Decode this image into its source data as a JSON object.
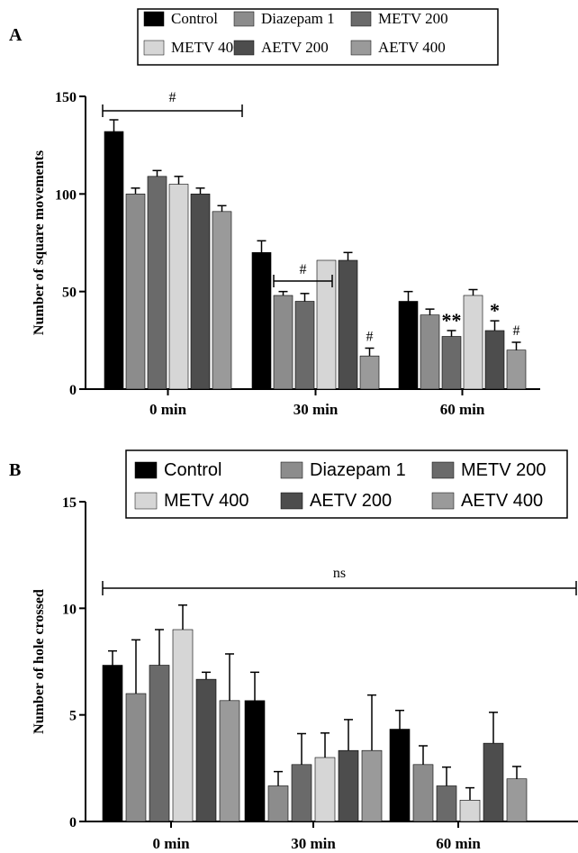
{
  "colors": {
    "Control": "#000000",
    "Diazepam 1": "#8c8c8c",
    "METV 200": "#6a6a6a",
    "METV 400": "#d6d6d6",
    "AETV 200": "#4d4d4d",
    "AETV 400": "#9a9a9a"
  },
  "chart_data": [
    {
      "panel": "A",
      "type": "bar",
      "ylabel": "Number of square movements",
      "ylim": [
        0,
        150
      ],
      "yticks": [
        "0",
        "50",
        "100",
        "150"
      ],
      "categories": [
        "0 min",
        "30 min",
        "60 min"
      ],
      "legend": [
        "Control",
        "Diazepam 1",
        "METV 200",
        "METV 400",
        "AETV 200",
        "AETV 400"
      ],
      "series": [
        {
          "name": "Control",
          "values": [
            132,
            70,
            45
          ],
          "errors": [
            6,
            6,
            5
          ]
        },
        {
          "name": "Diazepam 1",
          "values": [
            100,
            48,
            38
          ],
          "errors": [
            3,
            2,
            3
          ]
        },
        {
          "name": "METV 200",
          "values": [
            109,
            45,
            27
          ],
          "errors": [
            3,
            4,
            3
          ]
        },
        {
          "name": "METV 400",
          "values": [
            105,
            66,
            48
          ],
          "errors": [
            4,
            0,
            3
          ]
        },
        {
          "name": "AETV 200",
          "values": [
            100,
            66,
            30
          ],
          "errors": [
            3,
            4,
            5
          ]
        },
        {
          "name": "AETV 400",
          "values": [
            91,
            17,
            20
          ],
          "errors": [
            3,
            4,
            4
          ]
        }
      ],
      "annotations": {
        "hash": "#",
        "double_star": "**",
        "single_star": "*"
      }
    },
    {
      "panel": "B",
      "type": "bar",
      "ylabel": "Number of hole crossed",
      "ylim": [
        0,
        15
      ],
      "yticks": [
        "0",
        "5",
        "10",
        "15"
      ],
      "categories": [
        "0 min",
        "30 min",
        "60 min"
      ],
      "legend": [
        "Control",
        "Diazepam 1",
        "METV 200",
        "METV 400",
        "AETV 200",
        "AETV 400"
      ],
      "series": [
        {
          "name": "Control",
          "values": [
            7.33,
            5.67,
            4.33
          ],
          "errors": [
            0.67,
            1.33,
            0.88
          ]
        },
        {
          "name": "Diazepam 1",
          "values": [
            6.0,
            1.67,
            2.67
          ],
          "errors": [
            2.52,
            0.67,
            0.88
          ]
        },
        {
          "name": "METV 200",
          "values": [
            7.33,
            2.67,
            1.67
          ],
          "errors": [
            1.67,
            1.45,
            0.88
          ]
        },
        {
          "name": "METV 400",
          "values": [
            9.0,
            3.0,
            1.0
          ],
          "errors": [
            1.15,
            1.15,
            0.58
          ]
        },
        {
          "name": "AETV 200",
          "values": [
            6.67,
            3.33,
            3.67
          ],
          "errors": [
            0.33,
            1.45,
            1.45
          ]
        },
        {
          "name": "AETV 400",
          "values": [
            5.67,
            3.33,
            2.0
          ],
          "errors": [
            2.19,
            2.6,
            0.58
          ]
        }
      ],
      "annotations": {
        "ns": "ns"
      }
    }
  ]
}
